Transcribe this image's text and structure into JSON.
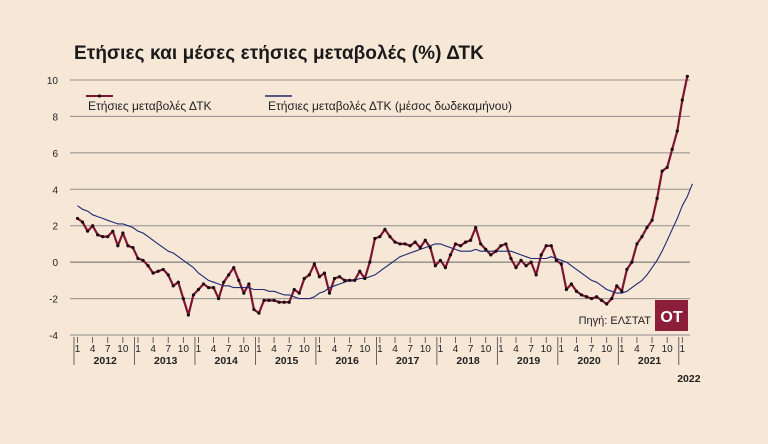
{
  "chart_data": {
    "type": "line",
    "title": "Ετήσιες και μέσες ετήσιες μεταβολές (%) ΔΤΚ",
    "source": "Πηγή: ΕΛΣΤΑΤ",
    "logo_text": "OT",
    "ylim": [
      -4,
      10
    ],
    "yticks": [
      -4,
      -2,
      0,
      2,
      4,
      6,
      8,
      10
    ],
    "grid": true,
    "legend_position": "top-left",
    "month_tick_labels": [
      "1",
      "4",
      "7",
      "10"
    ],
    "years": [
      "2012",
      "2013",
      "2014",
      "2015",
      "2016",
      "2017",
      "2018",
      "2019",
      "2020",
      "2021",
      "2022"
    ],
    "series": [
      {
        "name": "Ετήσιες μεταβολές ΔΤΚ",
        "color": "#7b1530",
        "values": [
          2.4,
          2.2,
          1.7,
          2.0,
          1.5,
          1.4,
          1.4,
          1.7,
          0.9,
          1.6,
          0.9,
          0.8,
          0.2,
          0.1,
          -0.2,
          -0.6,
          -0.5,
          -0.4,
          -0.7,
          -1.3,
          -1.1,
          -2.0,
          -2.9,
          -1.8,
          -1.5,
          -1.2,
          -1.4,
          -1.4,
          -2.0,
          -1.1,
          -0.7,
          -0.3,
          -1.0,
          -1.7,
          -1.2,
          -2.6,
          -2.8,
          -2.1,
          -2.1,
          -2.1,
          -2.2,
          -2.2,
          -2.2,
          -1.5,
          -1.7,
          -0.9,
          -0.7,
          -0.1,
          -0.8,
          -0.6,
          -1.7,
          -0.9,
          -0.8,
          -1.0,
          -1.0,
          -1.0,
          -0.5,
          -0.9,
          0.0,
          1.3,
          1.4,
          1.8,
          1.4,
          1.1,
          1.0,
          1.0,
          0.9,
          1.1,
          0.8,
          1.2,
          0.8,
          -0.2,
          0.1,
          -0.3,
          0.4,
          1.0,
          0.9,
          1.1,
          1.2,
          1.9,
          1.0,
          0.7,
          0.4,
          0.6,
          0.9,
          1.0,
          0.2,
          -0.3,
          0.1,
          -0.2,
          0.0,
          -0.7,
          0.4,
          0.9,
          0.9,
          0.1,
          -0.1,
          -1.5,
          -1.2,
          -1.6,
          -1.8,
          -1.9,
          -2.0,
          -1.9,
          -2.1,
          -2.3,
          -2.0,
          -1.3,
          -1.6,
          -0.4,
          0.0,
          1.0,
          1.4,
          1.9,
          2.3,
          3.5,
          5.0,
          5.2,
          6.2,
          7.2,
          8.9,
          10.2
        ]
      },
      {
        "name": "Ετήσιες μεταβολές ΔΤΚ (μέσος δωδεκαμήνου)",
        "color": "#1f2a70",
        "values": [
          3.1,
          2.9,
          2.8,
          2.6,
          2.5,
          2.4,
          2.3,
          2.2,
          2.1,
          2.1,
          2.0,
          1.9,
          1.7,
          1.6,
          1.4,
          1.2,
          1.0,
          0.8,
          0.6,
          0.5,
          0.3,
          0.1,
          -0.1,
          -0.3,
          -0.6,
          -0.8,
          -1.0,
          -1.1,
          -1.2,
          -1.3,
          -1.3,
          -1.4,
          -1.4,
          -1.4,
          -1.4,
          -1.5,
          -1.5,
          -1.5,
          -1.6,
          -1.6,
          -1.7,
          -1.8,
          -1.8,
          -1.9,
          -2.0,
          -2.0,
          -2.0,
          -1.9,
          -1.7,
          -1.6,
          -1.4,
          -1.3,
          -1.2,
          -1.1,
          -1.0,
          -1.0,
          -0.9,
          -0.9,
          -0.8,
          -0.7,
          -0.5,
          -0.3,
          -0.1,
          0.1,
          0.3,
          0.4,
          0.5,
          0.6,
          0.7,
          0.8,
          0.9,
          1.0,
          1.0,
          0.9,
          0.8,
          0.7,
          0.6,
          0.6,
          0.6,
          0.7,
          0.6,
          0.6,
          0.6,
          0.6,
          0.6,
          0.6,
          0.6,
          0.5,
          0.4,
          0.3,
          0.2,
          0.2,
          0.2,
          0.2,
          0.3,
          0.2,
          0.1,
          0.0,
          -0.2,
          -0.4,
          -0.6,
          -0.8,
          -1.0,
          -1.1,
          -1.3,
          -1.5,
          -1.6,
          -1.7,
          -1.7,
          -1.6,
          -1.4,
          -1.2,
          -1.0,
          -0.7,
          -0.3,
          0.1,
          0.6,
          1.2,
          1.8,
          2.4,
          3.1,
          3.6,
          4.3
        ]
      }
    ]
  }
}
